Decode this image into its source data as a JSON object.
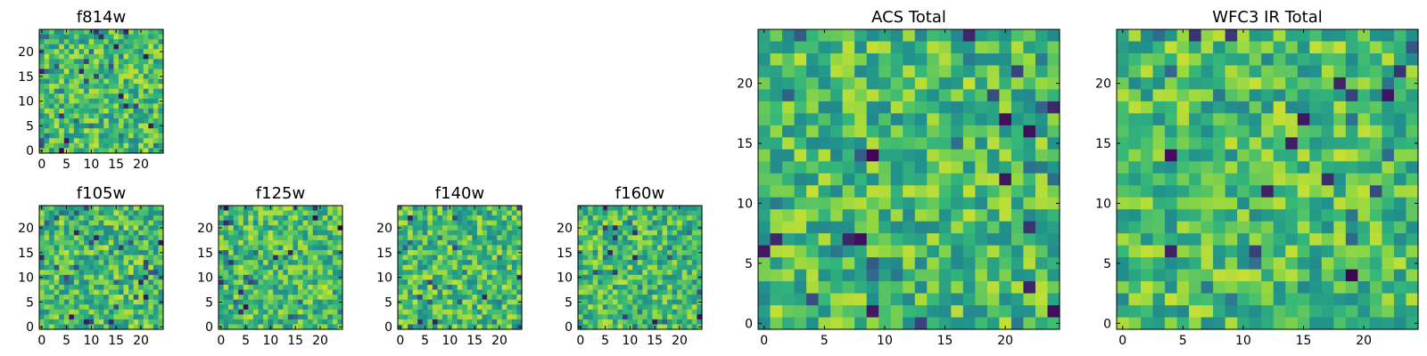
{
  "chart_data": [
    {
      "type": "heatmap",
      "title": "f814w",
      "size": 25,
      "seed": 11,
      "xticks": [
        0,
        5,
        10,
        15,
        20
      ],
      "yticks": [
        0,
        5,
        10,
        15,
        20
      ],
      "xlim": [
        0,
        25
      ],
      "ylim": [
        0,
        25
      ],
      "colormap": "viridis",
      "grid": false
    },
    {
      "type": "heatmap",
      "title": "f105w",
      "size": 25,
      "seed": 23,
      "xticks": [
        0,
        5,
        10,
        15,
        20
      ],
      "yticks": [
        0,
        5,
        10,
        15,
        20
      ],
      "xlim": [
        0,
        25
      ],
      "ylim": [
        0,
        25
      ],
      "colormap": "viridis",
      "grid": false
    },
    {
      "type": "heatmap",
      "title": "f125w",
      "size": 25,
      "seed": 37,
      "xticks": [
        0,
        5,
        10,
        15,
        20
      ],
      "yticks": [
        0,
        5,
        10,
        15,
        20
      ],
      "xlim": [
        0,
        25
      ],
      "ylim": [
        0,
        25
      ],
      "colormap": "viridis",
      "grid": false
    },
    {
      "type": "heatmap",
      "title": "f140w",
      "size": 25,
      "seed": 41,
      "xticks": [
        0,
        5,
        10,
        15,
        20
      ],
      "yticks": [
        0,
        5,
        10,
        15,
        20
      ],
      "xlim": [
        0,
        25
      ],
      "ylim": [
        0,
        25
      ],
      "colormap": "viridis",
      "grid": false
    },
    {
      "type": "heatmap",
      "title": "f160w",
      "size": 25,
      "seed": 53,
      "xticks": [
        0,
        5,
        10,
        15,
        20
      ],
      "yticks": [
        0,
        5,
        10,
        15,
        20
      ],
      "xlim": [
        0,
        25
      ],
      "ylim": [
        0,
        25
      ],
      "colormap": "viridis",
      "grid": false
    },
    {
      "type": "heatmap",
      "title": "ACS Total",
      "size": 25,
      "seed": 67,
      "xticks": [
        0,
        5,
        10,
        15,
        20
      ],
      "yticks": [
        0,
        5,
        10,
        15,
        20
      ],
      "xlim": [
        0,
        25
      ],
      "ylim": [
        0,
        25
      ],
      "colormap": "viridis",
      "grid": false
    },
    {
      "type": "heatmap",
      "title": "WFC3 IR Total",
      "size": 25,
      "seed": 79,
      "xticks": [
        0,
        5,
        10,
        15,
        20
      ],
      "yticks": [
        0,
        5,
        10,
        15,
        20
      ],
      "xlim": [
        0,
        25
      ],
      "ylim": [
        0,
        25
      ],
      "colormap": "viridis",
      "grid": false
    }
  ],
  "colors": {
    "viridis": [
      "#440154",
      "#31688e",
      "#21918c",
      "#35b779",
      "#90d743",
      "#fde725"
    ]
  }
}
